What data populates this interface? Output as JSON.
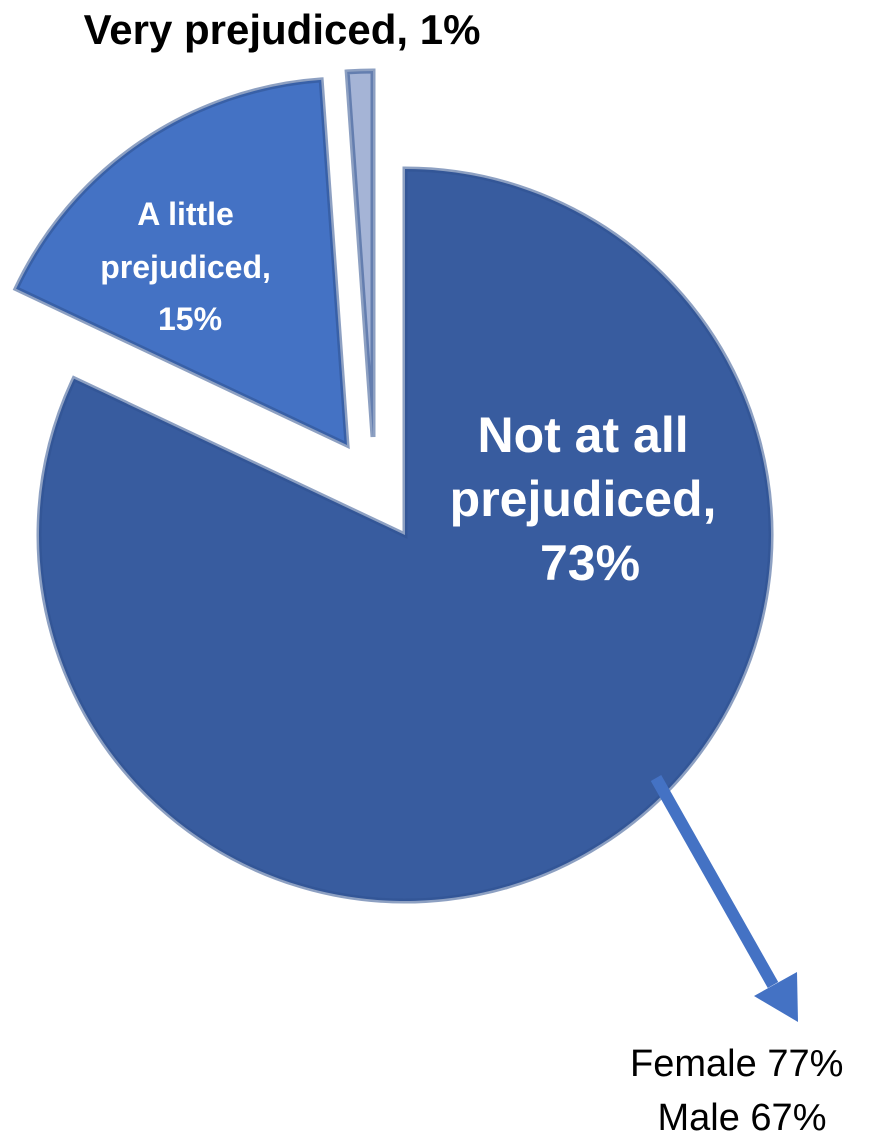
{
  "chart_data": {
    "type": "pie",
    "slices": [
      {
        "label": "Not at all prejudiced, 73%",
        "lines": [
          "Not at all",
          "prejudiced,",
          "73%"
        ],
        "value": 73,
        "color": "#385c9f"
      },
      {
        "label": "A little prejudiced, 15%",
        "lines": [
          "A little",
          "prejudiced,",
          "15%"
        ],
        "value": 15,
        "color": "#4472c4"
      },
      {
        "label": "Very prejudiced, 1%",
        "lines": [
          "Very prejudiced, 1%"
        ],
        "value": 1,
        "color": "#a5b4d6"
      }
    ],
    "annotation": {
      "lines": [
        "Female 77%",
        "Male 67%"
      ]
    }
  }
}
